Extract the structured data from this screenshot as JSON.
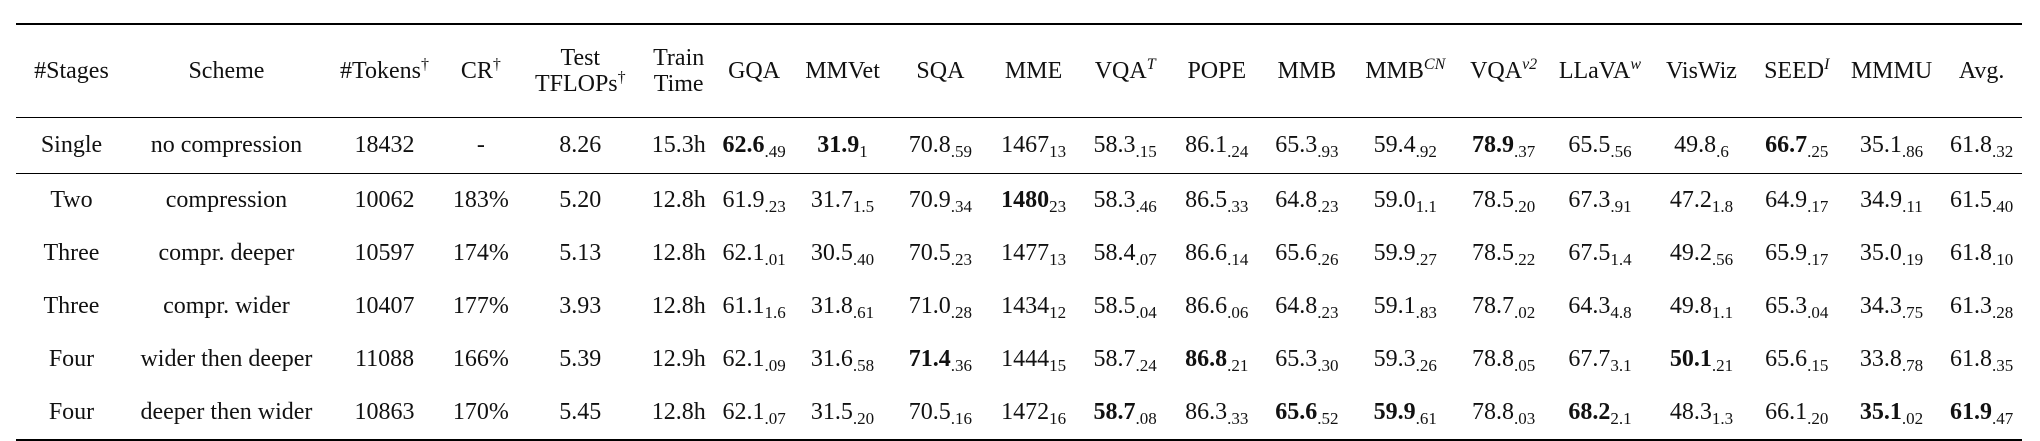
{
  "header": [
    {
      "text": "#Stages",
      "sup": ""
    },
    {
      "text": "Scheme",
      "sup": ""
    },
    {
      "text": "#Tokens",
      "sup": "†"
    },
    {
      "text": "CR",
      "sup": "†"
    },
    {
      "text": "Test TFLOPs",
      "line1": "Test",
      "line2": "TFLOPs",
      "sup": "†"
    },
    {
      "text": "Train Time",
      "line1": "Train",
      "line2": "Time",
      "sup": ""
    },
    {
      "text": "GQA",
      "sup": ""
    },
    {
      "text": "MMVet",
      "sup": ""
    },
    {
      "text": "SQA",
      "sup": ""
    },
    {
      "text": "MME",
      "sup": ""
    },
    {
      "text": "VQA",
      "sup": "T"
    },
    {
      "text": "POPE",
      "sup": ""
    },
    {
      "text": "MMB",
      "sup": ""
    },
    {
      "text": "MMB",
      "sup": "CN"
    },
    {
      "text": "VQA",
      "sup": "v2"
    },
    {
      "text": "LLaVA",
      "sup": "w"
    },
    {
      "text": "VisWiz",
      "sup": ""
    },
    {
      "text": "SEED",
      "sup": "I"
    },
    {
      "text": "MMMU",
      "sup": ""
    },
    {
      "text": "Avg.",
      "sup": ""
    }
  ],
  "rows": [
    {
      "stages": "Single",
      "scheme": "no compression",
      "tokens": "18432",
      "cr": "-",
      "tflops": "8.26",
      "train": "15.3h",
      "scores": [
        {
          "v": "62.6",
          "s": ".49",
          "bold": true
        },
        {
          "v": "31.9",
          "s": "1",
          "bold": true
        },
        {
          "v": "70.8",
          "s": ".59",
          "bold": false
        },
        {
          "v": "1467",
          "s": "13",
          "bold": false
        },
        {
          "v": "58.3",
          "s": ".15",
          "bold": false
        },
        {
          "v": "86.1",
          "s": ".24",
          "bold": false
        },
        {
          "v": "65.3",
          "s": ".93",
          "bold": false
        },
        {
          "v": "59.4",
          "s": ".92",
          "bold": false
        },
        {
          "v": "78.9",
          "s": ".37",
          "bold": true
        },
        {
          "v": "65.5",
          "s": ".56",
          "bold": false
        },
        {
          "v": "49.8",
          "s": ".6",
          "bold": false
        },
        {
          "v": "66.7",
          "s": ".25",
          "bold": true
        },
        {
          "v": "35.1",
          "s": ".86",
          "bold": false
        },
        {
          "v": "61.8",
          "s": ".32",
          "bold": false
        }
      ]
    },
    {
      "stages": "Two",
      "scheme": "compression",
      "tokens": "10062",
      "cr": "183%",
      "tflops": "5.20",
      "train": "12.8h",
      "scores": [
        {
          "v": "61.9",
          "s": ".23",
          "bold": false
        },
        {
          "v": "31.7",
          "s": "1.5",
          "bold": false
        },
        {
          "v": "70.9",
          "s": ".34",
          "bold": false
        },
        {
          "v": "1480",
          "s": "23",
          "bold": true
        },
        {
          "v": "58.3",
          "s": ".46",
          "bold": false
        },
        {
          "v": "86.5",
          "s": ".33",
          "bold": false
        },
        {
          "v": "64.8",
          "s": ".23",
          "bold": false
        },
        {
          "v": "59.0",
          "s": "1.1",
          "bold": false
        },
        {
          "v": "78.5",
          "s": ".20",
          "bold": false
        },
        {
          "v": "67.3",
          "s": ".91",
          "bold": false
        },
        {
          "v": "47.2",
          "s": "1.8",
          "bold": false
        },
        {
          "v": "64.9",
          "s": ".17",
          "bold": false
        },
        {
          "v": "34.9",
          "s": ".11",
          "bold": false
        },
        {
          "v": "61.5",
          "s": ".40",
          "bold": false
        }
      ]
    },
    {
      "stages": "Three",
      "scheme": "compr. deeper",
      "tokens": "10597",
      "cr": "174%",
      "tflops": "5.13",
      "train": "12.8h",
      "scores": [
        {
          "v": "62.1",
          "s": ".01",
          "bold": false
        },
        {
          "v": "30.5",
          "s": ".40",
          "bold": false
        },
        {
          "v": "70.5",
          "s": ".23",
          "bold": false
        },
        {
          "v": "1477",
          "s": "13",
          "bold": false
        },
        {
          "v": "58.4",
          "s": ".07",
          "bold": false
        },
        {
          "v": "86.6",
          "s": ".14",
          "bold": false
        },
        {
          "v": "65.6",
          "s": ".26",
          "bold": false
        },
        {
          "v": "59.9",
          "s": ".27",
          "bold": false
        },
        {
          "v": "78.5",
          "s": ".22",
          "bold": false
        },
        {
          "v": "67.5",
          "s": "1.4",
          "bold": false
        },
        {
          "v": "49.2",
          "s": ".56",
          "bold": false
        },
        {
          "v": "65.9",
          "s": ".17",
          "bold": false
        },
        {
          "v": "35.0",
          "s": ".19",
          "bold": false
        },
        {
          "v": "61.8",
          "s": ".10",
          "bold": false
        }
      ]
    },
    {
      "stages": "Three",
      "scheme": "compr. wider",
      "tokens": "10407",
      "cr": "177%",
      "tflops": "3.93",
      "train": "12.8h",
      "scores": [
        {
          "v": "61.1",
          "s": "1.6",
          "bold": false
        },
        {
          "v": "31.8",
          "s": ".61",
          "bold": false
        },
        {
          "v": "71.0",
          "s": ".28",
          "bold": false
        },
        {
          "v": "1434",
          "s": "12",
          "bold": false
        },
        {
          "v": "58.5",
          "s": ".04",
          "bold": false
        },
        {
          "v": "86.6",
          "s": ".06",
          "bold": false
        },
        {
          "v": "64.8",
          "s": ".23",
          "bold": false
        },
        {
          "v": "59.1",
          "s": ".83",
          "bold": false
        },
        {
          "v": "78.7",
          "s": ".02",
          "bold": false
        },
        {
          "v": "64.3",
          "s": "4.8",
          "bold": false
        },
        {
          "v": "49.8",
          "s": "1.1",
          "bold": false
        },
        {
          "v": "65.3",
          "s": ".04",
          "bold": false
        },
        {
          "v": "34.3",
          "s": ".75",
          "bold": false
        },
        {
          "v": "61.3",
          "s": ".28",
          "bold": false
        }
      ]
    },
    {
      "stages": "Four",
      "scheme": "wider then deeper",
      "tokens": "11088",
      "cr": "166%",
      "tflops": "5.39",
      "train": "12.9h",
      "scores": [
        {
          "v": "62.1",
          "s": ".09",
          "bold": false
        },
        {
          "v": "31.6",
          "s": ".58",
          "bold": false
        },
        {
          "v": "71.4",
          "s": ".36",
          "bold": true
        },
        {
          "v": "1444",
          "s": "15",
          "bold": false
        },
        {
          "v": "58.7",
          "s": ".24",
          "bold": false
        },
        {
          "v": "86.8",
          "s": ".21",
          "bold": true
        },
        {
          "v": "65.3",
          "s": ".30",
          "bold": false
        },
        {
          "v": "59.3",
          "s": ".26",
          "bold": false
        },
        {
          "v": "78.8",
          "s": ".05",
          "bold": false
        },
        {
          "v": "67.7",
          "s": "3.1",
          "bold": false
        },
        {
          "v": "50.1",
          "s": ".21",
          "bold": true
        },
        {
          "v": "65.6",
          "s": ".15",
          "bold": false
        },
        {
          "v": "33.8",
          "s": ".78",
          "bold": false
        },
        {
          "v": "61.8",
          "s": ".35",
          "bold": false
        }
      ]
    },
    {
      "stages": "Four",
      "scheme": "deeper then wider",
      "tokens": "10863",
      "cr": "170%",
      "tflops": "5.45",
      "train": "12.8h",
      "scores": [
        {
          "v": "62.1",
          "s": ".07",
          "bold": false
        },
        {
          "v": "31.5",
          "s": ".20",
          "bold": false
        },
        {
          "v": "70.5",
          "s": ".16",
          "bold": false
        },
        {
          "v": "1472",
          "s": "16",
          "bold": false
        },
        {
          "v": "58.7",
          "s": ".08",
          "bold": true
        },
        {
          "v": "86.3",
          "s": ".33",
          "bold": false
        },
        {
          "v": "65.6",
          "s": ".52",
          "bold": true
        },
        {
          "v": "59.9",
          "s": ".61",
          "bold": true
        },
        {
          "v": "78.8",
          "s": ".03",
          "bold": false
        },
        {
          "v": "68.2",
          "s": "2.1",
          "bold": true
        },
        {
          "v": "48.3",
          "s": "1.3",
          "bold": false
        },
        {
          "v": "66.1",
          "s": ".20",
          "bold": false
        },
        {
          "v": "35.1",
          "s": ".02",
          "bold": true
        },
        {
          "v": "61.9",
          "s": ".47",
          "bold": true
        }
      ]
    }
  ]
}
